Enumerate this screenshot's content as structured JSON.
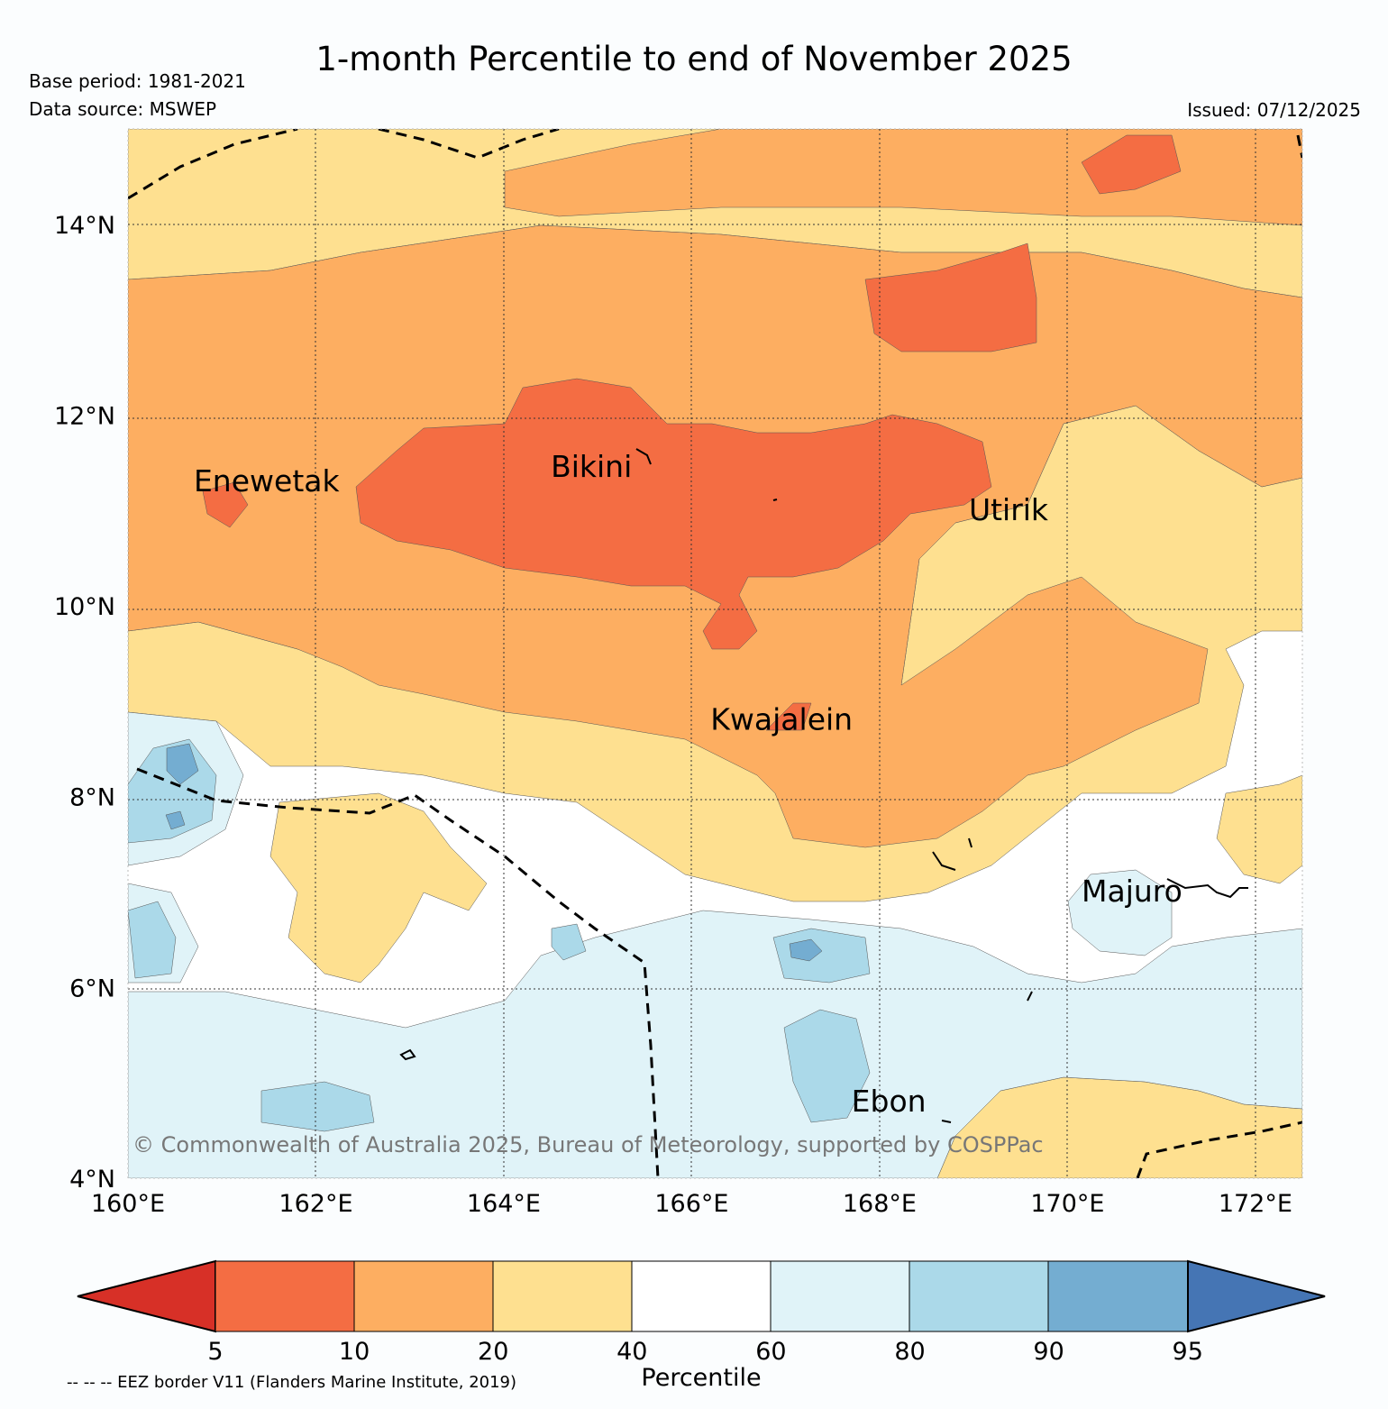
{
  "header": {
    "title": "1-month Percentile to end of November 2025",
    "base_period": "Base period: 1981-2021",
    "data_source": "Data source: MSWEP",
    "issued": "Issued: 07/12/2025"
  },
  "map": {
    "extent": {
      "lon": [
        160,
        172.5
      ],
      "lat": [
        4,
        15
      ]
    },
    "lat_ticks": [
      {
        "value": 14,
        "label": "14°N"
      },
      {
        "value": 12,
        "label": "12°N"
      },
      {
        "value": 10,
        "label": "10°N"
      },
      {
        "value": 8,
        "label": "8°N"
      },
      {
        "value": 6,
        "label": "6°N"
      },
      {
        "value": 4,
        "label": "4°N"
      }
    ],
    "lon_ticks": [
      {
        "value": 160,
        "label": "160°E"
      },
      {
        "value": 162,
        "label": "162°E"
      },
      {
        "value": 164,
        "label": "164°E"
      },
      {
        "value": 166,
        "label": "166°E"
      },
      {
        "value": 168,
        "label": "168°E"
      },
      {
        "value": 170,
        "label": "170°E"
      },
      {
        "value": 172,
        "label": "172°E"
      }
    ],
    "places": [
      {
        "name": "Enewetak",
        "lon": 160.7,
        "lat": 11.2
      },
      {
        "name": "Bikini",
        "lon": 164.5,
        "lat": 11.35
      },
      {
        "name": "Utirik",
        "lon": 168.95,
        "lat": 10.9
      },
      {
        "name": "Kwajalein",
        "lon": 166.2,
        "lat": 8.7
      },
      {
        "name": "Majuro",
        "lon": 170.15,
        "lat": 6.9
      },
      {
        "name": "Ebon",
        "lon": 167.7,
        "lat": 4.7
      }
    ],
    "copyright": "© Commonwealth of Australia 2025, Bureau of Meteorology, supported by COSPPac"
  },
  "colorbar": {
    "label": "Percentile",
    "ticks": [
      "5",
      "10",
      "20",
      "40",
      "60",
      "80",
      "90",
      "95"
    ],
    "colors": [
      "#d73027",
      "#f46d43",
      "#fdae61",
      "#fee090",
      "#ffffff",
      "#e0f3f8",
      "#abd9e9",
      "#74add1",
      "#4575b4"
    ],
    "eez_note": "-- -- -- EEZ border V11 (Flanders Marine Institute, 2019)"
  }
}
